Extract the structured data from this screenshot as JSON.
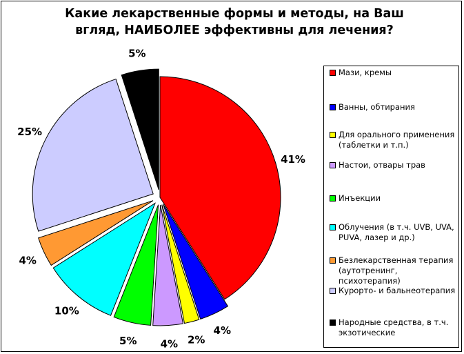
{
  "chart_data": {
    "type": "pie",
    "title_lines": [
      "Какие лекарственные формы и методы, на Ваш",
      "вгляд, НАИБОЛЕЕ эффективны для лечения?"
    ],
    "legend_position": "right",
    "slices": [
      {
        "name": "Мази, кремы",
        "value": 41,
        "label": "41%",
        "color": "#ff0000",
        "exploded": false
      },
      {
        "name": "Ванны, обтирания",
        "value": 4,
        "label": "4%",
        "color": "#0000ff",
        "exploded": true
      },
      {
        "name": "Для орального применения (таблетки и т.п.)",
        "value": 2,
        "label": "2%",
        "color": "#ffff00",
        "exploded": true
      },
      {
        "name": "Настои, отвары трав",
        "value": 4,
        "label": "4%",
        "color": "#cc99ff",
        "exploded": true
      },
      {
        "name": "Инъекции",
        "value": 5,
        "label": "5%",
        "color": "#00ff00",
        "exploded": true
      },
      {
        "name": "Облучения (в т.ч. UVB, UVA, PUVA, лазер и др.)",
        "value": 10,
        "label": "10%",
        "color": "#00ffff",
        "exploded": true
      },
      {
        "name": "Безлекарственная терапия (аутотренинг, психотерапия)",
        "value": 4,
        "label": "4%",
        "color": "#ff9933",
        "exploded": true
      },
      {
        "name": "Курорто- и бальнеотерапия",
        "value": 25,
        "label": "25%",
        "color": "#ccccff",
        "exploded": true
      },
      {
        "name": "Народные средства, в т.ч. экзотические",
        "value": 5,
        "label": "5%",
        "color": "#000000",
        "exploded": true
      }
    ]
  }
}
